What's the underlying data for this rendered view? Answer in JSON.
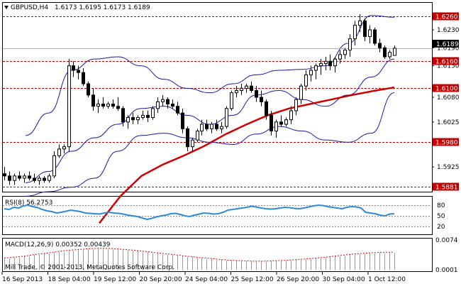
{
  "header": {
    "symbol_label": "GBPUSD,H4",
    "ohlc": "1.6173 1.6195 1.6173 1.6189"
  },
  "colors": {
    "candle_stroke": "#000000",
    "bull_fill": "#ffffff",
    "bear_fill": "#000000",
    "bollinger": "#1a1aa8",
    "moving_average": "#d10000",
    "level_line": "#c00000",
    "level_label_bg": "#c00000",
    "rsi": "#2e8ad8",
    "macd_histogram": "#999999",
    "macd_signal": "#d10000",
    "current_price_line": "#b0b0b0"
  },
  "main_panel": {
    "price_range": [
      1.587,
      1.629
    ],
    "current_price": "1.6189",
    "price_ticks": [
      "1.6230",
      "1.6190",
      "1.6150",
      "1.6080",
      "1.6025",
      "1.5925"
    ],
    "levels": [
      "1.6260",
      "1.6160",
      "1.6100",
      "1.5980",
      "1.5881"
    ]
  },
  "rsi_panel": {
    "label": "RSI(8) 56.2753",
    "range": [
      0,
      100
    ],
    "ticks": [
      "80",
      "50",
      "20"
    ],
    "levels": [
      80,
      50,
      20
    ]
  },
  "macd_panel": {
    "label": "MACD(12,26,9) 0.00352 0.00439",
    "range": [
      -0.0001,
      0.0076
    ],
    "ticks": [
      "0.0074",
      "0.0001"
    ],
    "copyright": "Mill Trade, © 2001-2013, MetaQuotes Software Corp."
  },
  "time_axis": {
    "labels": [
      "16 Sep 2013",
      "18 Sep 04:00",
      "19 Sep 12:00",
      "20 Sep 20:00",
      "24 Sep 04:00",
      "25 Sep 12:00",
      "26 Sep 20:00",
      "30 Sep 04:00",
      "1 Oct 12:00"
    ]
  },
  "chart_data": {
    "type": "candlestick",
    "candles": [
      [
        1.591,
        1.5925,
        1.5895,
        1.5905
      ],
      [
        1.5905,
        1.5915,
        1.5885,
        1.5895
      ],
      [
        1.5895,
        1.591,
        1.5885,
        1.5905
      ],
      [
        1.5905,
        1.5915,
        1.5895,
        1.59
      ],
      [
        1.59,
        1.591,
        1.589,
        1.5905
      ],
      [
        1.5905,
        1.5915,
        1.5895,
        1.59
      ],
      [
        1.59,
        1.591,
        1.589,
        1.5895
      ],
      [
        1.5895,
        1.5905,
        1.5885,
        1.59
      ],
      [
        1.59,
        1.5905,
        1.589,
        1.5895
      ],
      [
        1.5895,
        1.591,
        1.589,
        1.5905
      ],
      [
        1.5905,
        1.596,
        1.59,
        1.595
      ],
      [
        1.595,
        1.5975,
        1.5945,
        1.5965
      ],
      [
        1.5965,
        1.5975,
        1.5955,
        1.597
      ],
      [
        1.597,
        1.6165,
        1.596,
        1.615
      ],
      [
        1.615,
        1.616,
        1.6125,
        1.614
      ],
      [
        1.614,
        1.615,
        1.612,
        1.6135
      ],
      [
        1.6135,
        1.6145,
        1.6105,
        1.611
      ],
      [
        1.611,
        1.6115,
        1.608,
        1.6085
      ],
      [
        1.6085,
        1.61,
        1.605,
        1.606
      ],
      [
        1.606,
        1.6075,
        1.6045,
        1.6065
      ],
      [
        1.6065,
        1.608,
        1.6055,
        1.606
      ],
      [
        1.606,
        1.607,
        1.6055,
        1.6065
      ],
      [
        1.6065,
        1.6075,
        1.6055,
        1.606
      ],
      [
        1.606,
        1.608,
        1.605,
        1.6055
      ],
      [
        1.6055,
        1.606,
        1.6015,
        1.6025
      ],
      [
        1.6025,
        1.604,
        1.601,
        1.6035
      ],
      [
        1.6035,
        1.6045,
        1.602,
        1.603
      ],
      [
        1.603,
        1.604,
        1.602,
        1.6035
      ],
      [
        1.6035,
        1.605,
        1.603,
        1.604
      ],
      [
        1.604,
        1.605,
        1.6025,
        1.6035
      ],
      [
        1.6035,
        1.606,
        1.603,
        1.6055
      ],
      [
        1.6055,
        1.608,
        1.6045,
        1.607
      ],
      [
        1.607,
        1.6085,
        1.606,
        1.6075
      ],
      [
        1.6075,
        1.608,
        1.6055,
        1.6065
      ],
      [
        1.6065,
        1.6075,
        1.6055,
        1.606
      ],
      [
        1.606,
        1.607,
        1.604,
        1.6045
      ],
      [
        1.6045,
        1.6055,
        1.6,
        1.601
      ],
      [
        1.601,
        1.6015,
        1.596,
        1.597
      ],
      [
        1.597,
        1.599,
        1.596,
        1.5985
      ],
      [
        1.5985,
        1.601,
        1.598,
        1.6005
      ],
      [
        1.6005,
        1.603,
        1.5995,
        1.602
      ],
      [
        1.602,
        1.603,
        1.6005,
        1.601
      ],
      [
        1.601,
        1.6025,
        1.6,
        1.602
      ],
      [
        1.602,
        1.603,
        1.6005,
        1.601
      ],
      [
        1.601,
        1.6025,
        1.6,
        1.6015
      ],
      [
        1.6015,
        1.606,
        1.601,
        1.6055
      ],
      [
        1.6055,
        1.6095,
        1.605,
        1.609
      ],
      [
        1.609,
        1.6105,
        1.608,
        1.6095
      ],
      [
        1.6095,
        1.611,
        1.6085,
        1.61
      ],
      [
        1.61,
        1.611,
        1.609,
        1.6105
      ],
      [
        1.6105,
        1.6115,
        1.609,
        1.6095
      ],
      [
        1.6095,
        1.6105,
        1.607,
        1.608
      ],
      [
        1.608,
        1.6095,
        1.606,
        1.607
      ],
      [
        1.607,
        1.6075,
        1.603,
        1.604
      ],
      [
        1.604,
        1.605,
        1.5995,
        1.6005
      ],
      [
        1.6005,
        1.603,
        1.599,
        1.6025
      ],
      [
        1.6025,
        1.604,
        1.6015,
        1.602
      ],
      [
        1.602,
        1.6035,
        1.6015,
        1.603
      ],
      [
        1.603,
        1.606,
        1.602,
        1.605
      ],
      [
        1.605,
        1.608,
        1.604,
        1.6075
      ],
      [
        1.6075,
        1.611,
        1.6065,
        1.6105
      ],
      [
        1.6105,
        1.614,
        1.6095,
        1.613
      ],
      [
        1.613,
        1.615,
        1.6115,
        1.614
      ],
      [
        1.614,
        1.6155,
        1.612,
        1.615
      ],
      [
        1.615,
        1.6165,
        1.613,
        1.6155
      ],
      [
        1.6155,
        1.617,
        1.614,
        1.616
      ],
      [
        1.616,
        1.6175,
        1.614,
        1.615
      ],
      [
        1.615,
        1.617,
        1.6135,
        1.6165
      ],
      [
        1.6165,
        1.6185,
        1.6155,
        1.6175
      ],
      [
        1.6175,
        1.619,
        1.6165,
        1.6185
      ],
      [
        1.6185,
        1.622,
        1.617,
        1.621
      ],
      [
        1.621,
        1.625,
        1.6195,
        1.624
      ],
      [
        1.624,
        1.6265,
        1.6225,
        1.625
      ],
      [
        1.625,
        1.6255,
        1.6205,
        1.6215
      ],
      [
        1.6215,
        1.624,
        1.62,
        1.623
      ],
      [
        1.623,
        1.6235,
        1.6195,
        1.62
      ],
      [
        1.62,
        1.621,
        1.618,
        1.619
      ],
      [
        1.619,
        1.6195,
        1.6165,
        1.617
      ],
      [
        1.617,
        1.6185,
        1.6165,
        1.618
      ],
      [
        1.6173,
        1.6195,
        1.6173,
        1.6189
      ]
    ],
    "bb_upper": [
      1.5995,
      1.6045,
      1.614,
      1.6165,
      1.617,
      1.615,
      1.612,
      1.61,
      1.609,
      1.611,
      1.613,
      1.614,
      1.6142,
      1.615,
      1.62,
      1.6262,
      1.6258
    ],
    "bb_middle": [
      1.589,
      1.5915,
      1.596,
      1.599,
      1.602,
      1.6055,
      1.606,
      1.604,
      1.602,
      1.604,
      1.6085,
      1.6095,
      1.6075,
      1.606,
      1.6085,
      1.6125,
      1.6165
    ],
    "bb_lower": [
      1.586,
      1.587,
      1.588,
      1.59,
      1.596,
      1.5995,
      1.6,
      1.599,
      1.598,
      1.5975,
      1.5998,
      1.6015,
      1.6005,
      1.5985,
      1.598,
      1.6,
      1.609
    ],
    "ma": [
      1.58,
      1.586,
      1.5905,
      1.593,
      1.595,
      1.5972,
      1.5998,
      1.602,
      1.604,
      1.6055,
      1.6065,
      1.6075,
      1.6085,
      1.6094,
      1.6102
    ],
    "rsi": [
      70,
      68,
      74,
      72,
      78,
      80,
      76,
      73,
      68,
      64,
      62,
      58,
      60,
      63,
      66,
      64,
      62,
      58,
      57,
      56,
      55,
      58,
      60,
      58,
      57,
      55,
      52,
      50,
      48,
      44,
      40,
      43,
      47,
      50,
      52,
      56,
      57,
      54,
      50,
      48,
      52,
      55,
      58,
      57,
      55,
      56,
      60,
      66,
      68,
      70,
      72,
      74,
      77,
      75,
      72,
      70,
      69,
      70,
      72,
      74,
      73,
      71,
      70,
      72,
      75,
      78,
      80,
      79,
      76,
      74,
      72,
      70,
      74,
      76,
      75,
      72,
      60,
      58,
      56,
      52,
      50,
      55,
      56
    ],
    "macd_signal": [
      0.003,
      0.0032,
      0.0035,
      0.0039,
      0.0042,
      0.0046,
      0.0049,
      0.0051,
      0.0053,
      0.0054,
      0.0053,
      0.0051,
      0.0049,
      0.0046,
      0.0043,
      0.004,
      0.0037,
      0.0034,
      0.0031,
      0.0029,
      0.0026,
      0.0024,
      0.0023,
      0.0022,
      0.0022,
      0.0023,
      0.0024,
      0.0026,
      0.0028,
      0.003,
      0.0033,
      0.0036,
      0.0039,
      0.0041,
      0.0043,
      0.0044,
      0.0044
    ]
  }
}
